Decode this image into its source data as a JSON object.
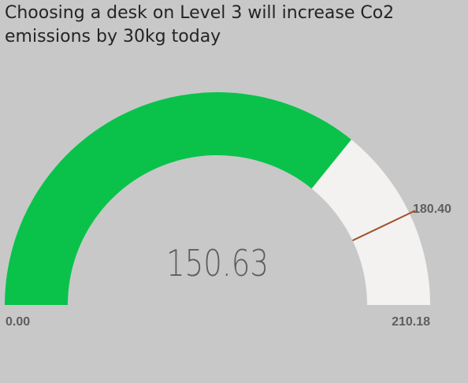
{
  "title": "Choosing a desk on Level 3 will increase Co2 emissions by 30kg today",
  "chart_data": {
    "type": "gauge",
    "value": 150.63,
    "value_label": "150.63",
    "min": 0,
    "max": 210.18,
    "min_label": "0.00",
    "max_label": "210.18",
    "target": 180.4,
    "target_label": "180.40",
    "colors": {
      "fill": "#0ac24a",
      "track": "#f3f2f1",
      "target_line": "#a0522d",
      "value_text": "#605e5c",
      "axis_text": "#605e5c",
      "background": "#c8c8c8"
    }
  }
}
